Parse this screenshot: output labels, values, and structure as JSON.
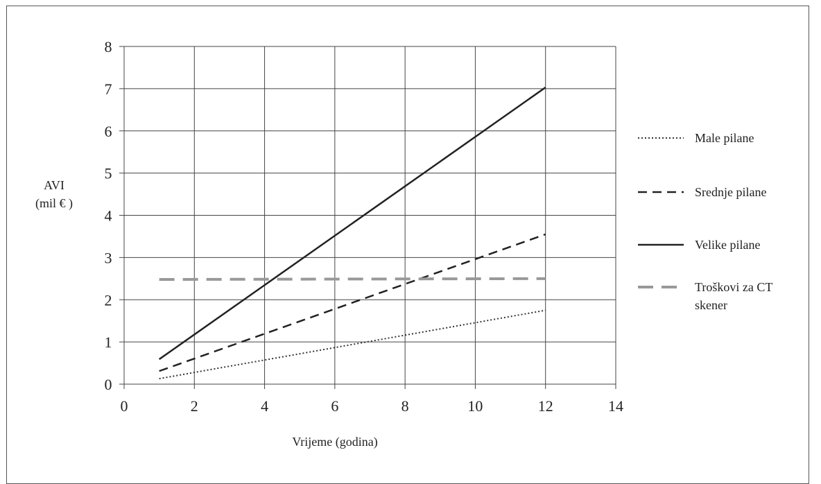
{
  "chart_data": {
    "type": "line",
    "title": "",
    "xlabel": "Vrijeme (godina)",
    "ylabel_lines": [
      "AVI",
      "(mil € )"
    ],
    "xlim": [
      0,
      14
    ],
    "ylim": [
      0,
      8
    ],
    "xticks": [
      0,
      2,
      4,
      6,
      8,
      10,
      12,
      14
    ],
    "yticks": [
      0,
      1,
      2,
      3,
      4,
      5,
      6,
      7,
      8
    ],
    "grid": true,
    "legend_position": "right",
    "series": [
      {
        "name": "Male pilane",
        "style": "dotted",
        "color": "#333333",
        "points": [
          [
            1,
            0.13
          ],
          [
            12,
            1.75
          ]
        ]
      },
      {
        "name": "Srednje pilane",
        "style": "dashed",
        "color": "#222222",
        "points": [
          [
            1,
            0.31
          ],
          [
            12,
            3.55
          ]
        ]
      },
      {
        "name": "Velike pilane",
        "style": "solid",
        "color": "#222222",
        "points": [
          [
            1,
            0.59
          ],
          [
            12,
            7.03
          ]
        ]
      },
      {
        "name": "Troškovi za CT skener",
        "style": "longdash",
        "color": "#999999",
        "legend_lines": [
          "Troškovi za CT",
          "skener"
        ],
        "points": [
          [
            1,
            2.48
          ],
          [
            12,
            2.5
          ]
        ]
      }
    ]
  }
}
